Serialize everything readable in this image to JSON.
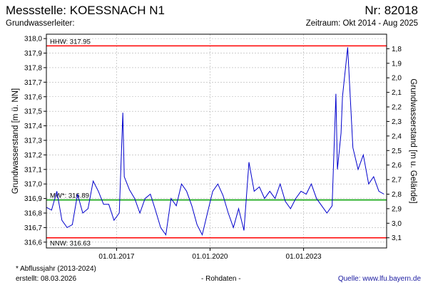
{
  "header": {
    "station": "Messstelle: KOESSNACH N1",
    "nr": "Nr: 82018",
    "aquifer": "Grundwasserleiter:",
    "period": "Zeitraum: Okt 2014 - Aug 2025"
  },
  "footer": {
    "footnote": "* Abflussjahr (2013-2024)",
    "created": "erstellt:  08.03.2026",
    "raw": "- Rohdaten -",
    "source": "Quelle:  www.lfu.bayern.de"
  },
  "colors": {
    "series": "#0000cc",
    "limit": "#ff0000",
    "mean": "#00a000",
    "grid": "#b0b0b0"
  },
  "chart_data": {
    "type": "line",
    "ylabel": "Grundwasserstand [m ü. NN]",
    "y2label": "Grundwasserstand [m u. Gelände]",
    "ylim": [
      316.56,
      318.03
    ],
    "y2_ticks": [
      1.8,
      1.9,
      2.0,
      2.1,
      2.2,
      2.3,
      2.4,
      2.5,
      2.6,
      2.7,
      2.8,
      2.9,
      3.0,
      3.1
    ],
    "y2_ticks_labels": [
      "1,8",
      "1,9",
      "2,0",
      "2,1",
      "2,2",
      "2,3",
      "2,4",
      "2,5",
      "2,6",
      "2,7",
      "2,8",
      "2,9",
      "3,0",
      "3,1"
    ],
    "y2_reference": 319.73,
    "y_ticks": [
      316.6,
      316.7,
      316.8,
      316.9,
      317.0,
      317.1,
      317.2,
      317.3,
      317.4,
      317.5,
      317.6,
      317.7,
      317.8,
      317.9,
      318.0
    ],
    "y_ticks_labels": [
      "316,6",
      "316,7",
      "316,8",
      "316,9",
      "317,0",
      "317,1",
      "317,2",
      "317,3",
      "317,4",
      "317,5",
      "317,6",
      "317,7",
      "317,8",
      "317,9",
      "318,0"
    ],
    "xlim": [
      "2014-10-01",
      "2025-08-31"
    ],
    "x_ticks": [
      "2017-01-01",
      "2020-01-01",
      "2023-01-01"
    ],
    "x_ticks_labels": [
      "01.01.2017",
      "01.01.2020",
      "01.01.2023"
    ],
    "grid": true,
    "reference_lines": [
      {
        "label": "HHW: 317.95",
        "value": 317.95,
        "color": "#ff0000"
      },
      {
        "label": "MW*: 316.89",
        "value": 316.89,
        "color": "#00a000"
      },
      {
        "label": "NNW: 316.63",
        "value": 316.63,
        "color": "#ff0000"
      }
    ],
    "series": [
      {
        "x": [
          "2014-10-01",
          "2014-12-01",
          "2015-02-01",
          "2015-04-01",
          "2015-06-01",
          "2015-08-01",
          "2015-10-01",
          "2015-12-01",
          "2016-02-01",
          "2016-04-01",
          "2016-06-01",
          "2016-08-01",
          "2016-10-01",
          "2016-12-01",
          "2017-02-01",
          "2017-03-15",
          "2017-04-01",
          "2017-06-01",
          "2017-08-01",
          "2017-10-01",
          "2017-12-01",
          "2018-02-01",
          "2018-04-01",
          "2018-06-01",
          "2018-08-01",
          "2018-10-01",
          "2018-12-01",
          "2019-02-01",
          "2019-04-01",
          "2019-06-01",
          "2019-08-01",
          "2019-10-01",
          "2019-12-01",
          "2020-02-01",
          "2020-04-01",
          "2020-06-01",
          "2020-08-01",
          "2020-10-01",
          "2020-12-01",
          "2021-02-01",
          "2021-04-01",
          "2021-06-01",
          "2021-08-01",
          "2021-10-01",
          "2021-12-01",
          "2022-02-01",
          "2022-04-01",
          "2022-06-01",
          "2022-08-01",
          "2022-10-01",
          "2022-12-01",
          "2023-02-01",
          "2023-04-01",
          "2023-06-01",
          "2023-08-01",
          "2023-10-01",
          "2023-12-01",
          "2024-01-15",
          "2024-02-01",
          "2024-03-15",
          "2024-04-01",
          "2024-06-01",
          "2024-08-01",
          "2024-10-01",
          "2024-12-01",
          "2025-02-01",
          "2025-04-01",
          "2025-06-01",
          "2025-08-01"
        ],
        "y": [
          316.84,
          316.82,
          316.95,
          316.75,
          316.7,
          316.72,
          316.93,
          316.8,
          316.83,
          317.02,
          316.95,
          316.86,
          316.86,
          316.75,
          316.8,
          317.49,
          317.05,
          316.96,
          316.9,
          316.8,
          316.9,
          316.93,
          316.82,
          316.7,
          316.65,
          316.9,
          316.85,
          317.0,
          316.95,
          316.85,
          316.72,
          316.65,
          316.8,
          316.95,
          317.0,
          316.92,
          316.8,
          316.7,
          316.83,
          316.68,
          317.15,
          316.95,
          316.98,
          316.9,
          316.95,
          316.9,
          317.0,
          316.88,
          316.83,
          316.9,
          316.95,
          316.93,
          317.0,
          316.9,
          316.85,
          316.8,
          316.85,
          317.62,
          317.1,
          317.35,
          317.6,
          317.94,
          317.25,
          317.1,
          317.2,
          317.0,
          317.05,
          316.95,
          316.93
        ]
      }
    ]
  }
}
